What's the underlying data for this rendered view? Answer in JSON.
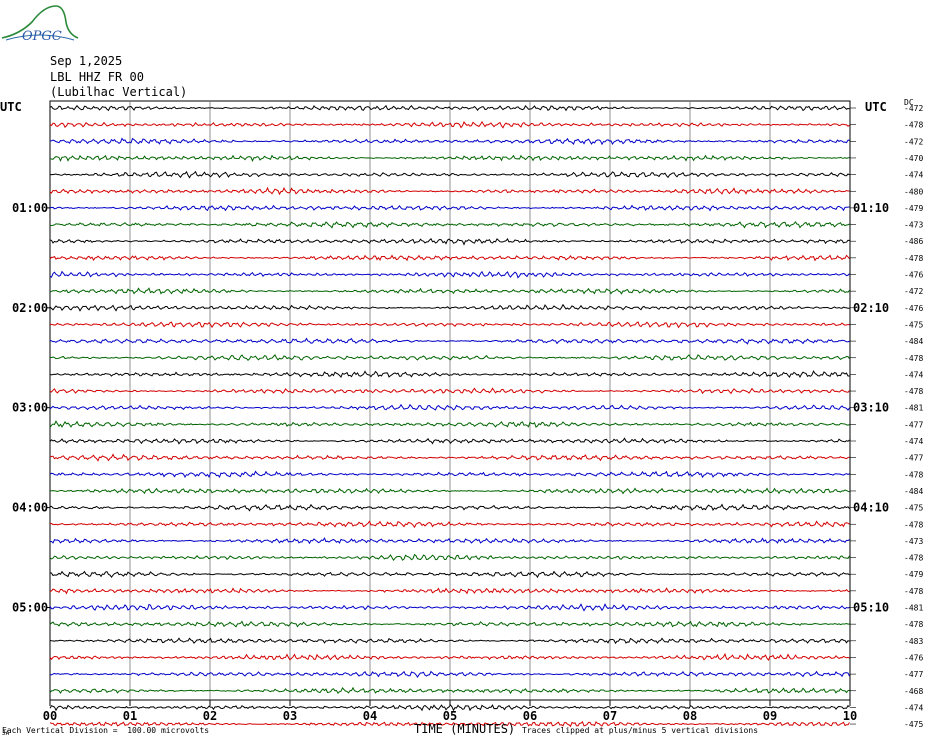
{
  "header": {
    "date": "Sep 1,2025",
    "station": "LBL HHZ FR 00",
    "station_name": "(Lubilhac Vertical)",
    "utc_left": "UTC",
    "utc_right": "UTC",
    "dc_label": "DC"
  },
  "logo": {
    "text": "OPGC"
  },
  "footer": {
    "left": "Each Vertical Division =  100.00 microvolts",
    "right": "Traces clipped at plus/minus 5 vertical divisions",
    "stamp": "JA"
  },
  "chart_data": {
    "type": "line",
    "title": "",
    "xlabel": "TIME (MINUTES)",
    "x_ticks": [
      "00",
      "01",
      "02",
      "03",
      "04",
      "05",
      "06",
      "07",
      "08",
      "09",
      "10"
    ],
    "xlim": [
      0,
      10
    ],
    "left_time_labels": [
      {
        "row": 6,
        "label": "01:00"
      },
      {
        "row": 12,
        "label": "02:00"
      },
      {
        "row": 18,
        "label": "03:00"
      },
      {
        "row": 24,
        "label": "04:00"
      },
      {
        "row": 30,
        "label": "05:00"
      }
    ],
    "right_time_labels": [
      {
        "row": 6,
        "label": "01:10"
      },
      {
        "row": 12,
        "label": "02:10"
      },
      {
        "row": 18,
        "label": "03:10"
      },
      {
        "row": 24,
        "label": "04:10"
      },
      {
        "row": 30,
        "label": "05:10"
      }
    ],
    "trace_colors": [
      "#000000",
      "#d40000",
      "#0000c8",
      "#006400"
    ],
    "dc_offsets": [
      -472,
      -478,
      -472,
      -470,
      -474,
      -480,
      -479,
      -473,
      -486,
      -478,
      -476,
      -472,
      -476,
      -475,
      -484,
      -478,
      -474,
      -478,
      -481,
      -477,
      -474,
      -477,
      -478,
      -484,
      -475,
      -478,
      -473,
      -478,
      -479,
      -478,
      -481,
      -478,
      -483,
      -476,
      -477,
      -468,
      -474,
      -475
    ],
    "grid": true
  }
}
